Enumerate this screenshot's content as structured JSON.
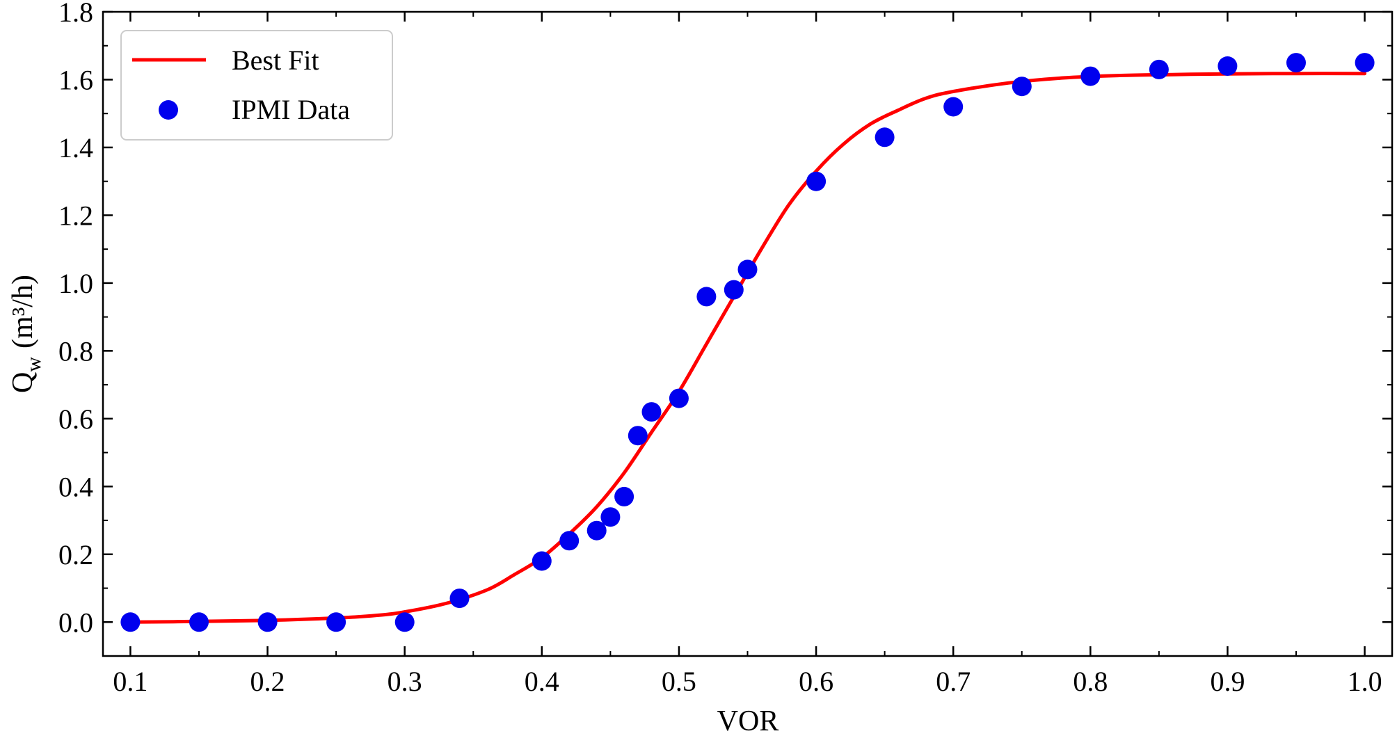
{
  "chart_data": {
    "type": "scatter",
    "xlabel": "VOR",
    "ylabel": {
      "main": "Q",
      "sub": "w",
      "units": "(m³/h)"
    },
    "xlim": [
      0.08,
      1.02
    ],
    "ylim": [
      -0.1,
      1.8
    ],
    "xticks": [
      "0.1",
      "0.2",
      "0.3",
      "0.4",
      "0.5",
      "0.6",
      "0.7",
      "0.8",
      "0.9",
      "1.0"
    ],
    "yticks": [
      "0.0",
      "0.2",
      "0.4",
      "0.6",
      "0.8",
      "1.0",
      "1.2",
      "1.4",
      "1.6",
      "1.8"
    ],
    "grid": false,
    "legend": {
      "placement": "top-left",
      "entries": [
        "Best Fit",
        "IPMI Data"
      ]
    },
    "colors": {
      "fit": "#ff0000",
      "data": "#0000ee",
      "axes": "#000000"
    },
    "series": [
      {
        "name": "IPMI Data",
        "kind": "scatter",
        "x": [
          0.1,
          0.15,
          0.2,
          0.25,
          0.3,
          0.34,
          0.4,
          0.42,
          0.44,
          0.45,
          0.46,
          0.47,
          0.48,
          0.5,
          0.52,
          0.54,
          0.55,
          0.6,
          0.65,
          0.7,
          0.75,
          0.8,
          0.85,
          0.9,
          0.95,
          1.0
        ],
        "y": [
          0.0,
          0.0,
          0.0,
          0.0,
          0.0,
          0.07,
          0.18,
          0.24,
          0.27,
          0.31,
          0.37,
          0.55,
          0.62,
          0.66,
          0.96,
          0.98,
          1.04,
          1.3,
          1.43,
          1.52,
          1.58,
          1.61,
          1.63,
          1.64,
          1.65,
          1.65
        ]
      },
      {
        "name": "Best Fit",
        "kind": "line",
        "x": [
          0.1,
          0.15,
          0.2,
          0.25,
          0.28,
          0.3,
          0.33,
          0.36,
          0.38,
          0.4,
          0.42,
          0.44,
          0.46,
          0.48,
          0.5,
          0.52,
          0.54,
          0.56,
          0.58,
          0.6,
          0.62,
          0.64,
          0.66,
          0.68,
          0.7,
          0.74,
          0.78,
          0.82,
          0.86,
          0.9,
          0.95,
          1.0
        ],
        "y": [
          0.0,
          0.002,
          0.005,
          0.012,
          0.02,
          0.03,
          0.055,
          0.095,
          0.14,
          0.19,
          0.26,
          0.34,
          0.44,
          0.56,
          0.68,
          0.82,
          0.96,
          1.1,
          1.23,
          1.33,
          1.41,
          1.47,
          1.51,
          1.545,
          1.565,
          1.59,
          1.605,
          1.612,
          1.615,
          1.617,
          1.618,
          1.618
        ]
      }
    ]
  }
}
